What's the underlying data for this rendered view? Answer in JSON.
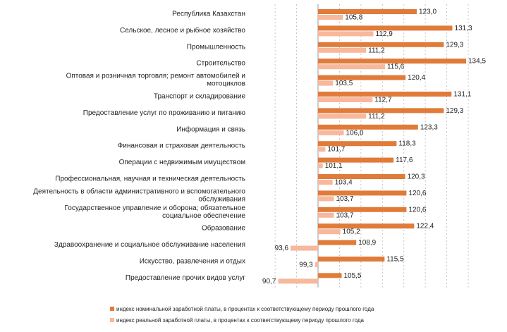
{
  "chart_data": {
    "type": "bar",
    "orientation": "horizontal",
    "title": "",
    "xlabel": "",
    "ylabel": "",
    "xlim": [
      90.7,
      134.5
    ],
    "grid": true,
    "legend_position": "bottom",
    "categories": [
      [
        "Республика Казахстан"
      ],
      [
        "Сельское, лесное и рыбное хозяйство"
      ],
      [
        "Промышленность"
      ],
      [
        "Строительство"
      ],
      [
        "Оптовая и розничная торговля; ремонт автомобилей и",
        "мотоциклов"
      ],
      [
        "Транспорт и складирование"
      ],
      [
        "Предоставление услуг по проживанию и питанию"
      ],
      [
        "Информация и связь"
      ],
      [
        "Финансовая и страховая деятельность"
      ],
      [
        "Операции с недвижимым имуществом"
      ],
      [
        "Профессиональная, научная и техническая деятельность"
      ],
      [
        "Деятельность в области административного и вспомогательного",
        "обслуживания"
      ],
      [
        "Государственное управление и оборона; обязательное",
        "социальное обеспечение"
      ],
      [
        "Образование"
      ],
      [
        "Здравоохранение и социальное обслуживание населения"
      ],
      [
        "Искусство, развлечения и отдых"
      ],
      [
        "Предоставление прочих видов услуг"
      ]
    ],
    "series": [
      {
        "name": "индекс номинальной заработной платы, в процентах к соответствующему периоду прошлого года",
        "color": "#e07b39",
        "values": [
          123.0,
          131.3,
          129.3,
          134.5,
          120.4,
          131.1,
          129.3,
          123.3,
          118.3,
          117.6,
          120.3,
          120.6,
          120.6,
          122.4,
          108.9,
          115.5,
          105.5
        ],
        "labels": [
          "123,0",
          "131,3",
          "129,3",
          "134,5",
          "120,4",
          "131,1",
          "129,3",
          "123,3",
          "118,3",
          "117,6",
          "120,3",
          "120,6",
          "120,6",
          "122,4",
          "108,9",
          "115,5",
          "105,5"
        ]
      },
      {
        "name": "индекс реальной заработной платы, в процентах к соответствующему периоду прошлого года",
        "color": "#f7b89c",
        "values": [
          105.8,
          112.9,
          111.2,
          115.6,
          103.5,
          112.7,
          111.2,
          106.0,
          101.7,
          101.1,
          103.4,
          103.7,
          103.7,
          105.2,
          93.6,
          99.3,
          90.7
        ],
        "labels": [
          "105,8",
          "112,9",
          "111,2",
          "115,6",
          "103,5",
          "112,7",
          "111,2",
          "106,0",
          "101,7",
          "101,1",
          "103,4",
          "103,7",
          "103,7",
          "105,2",
          "93,6",
          "99,3",
          "90,7"
        ]
      }
    ]
  }
}
